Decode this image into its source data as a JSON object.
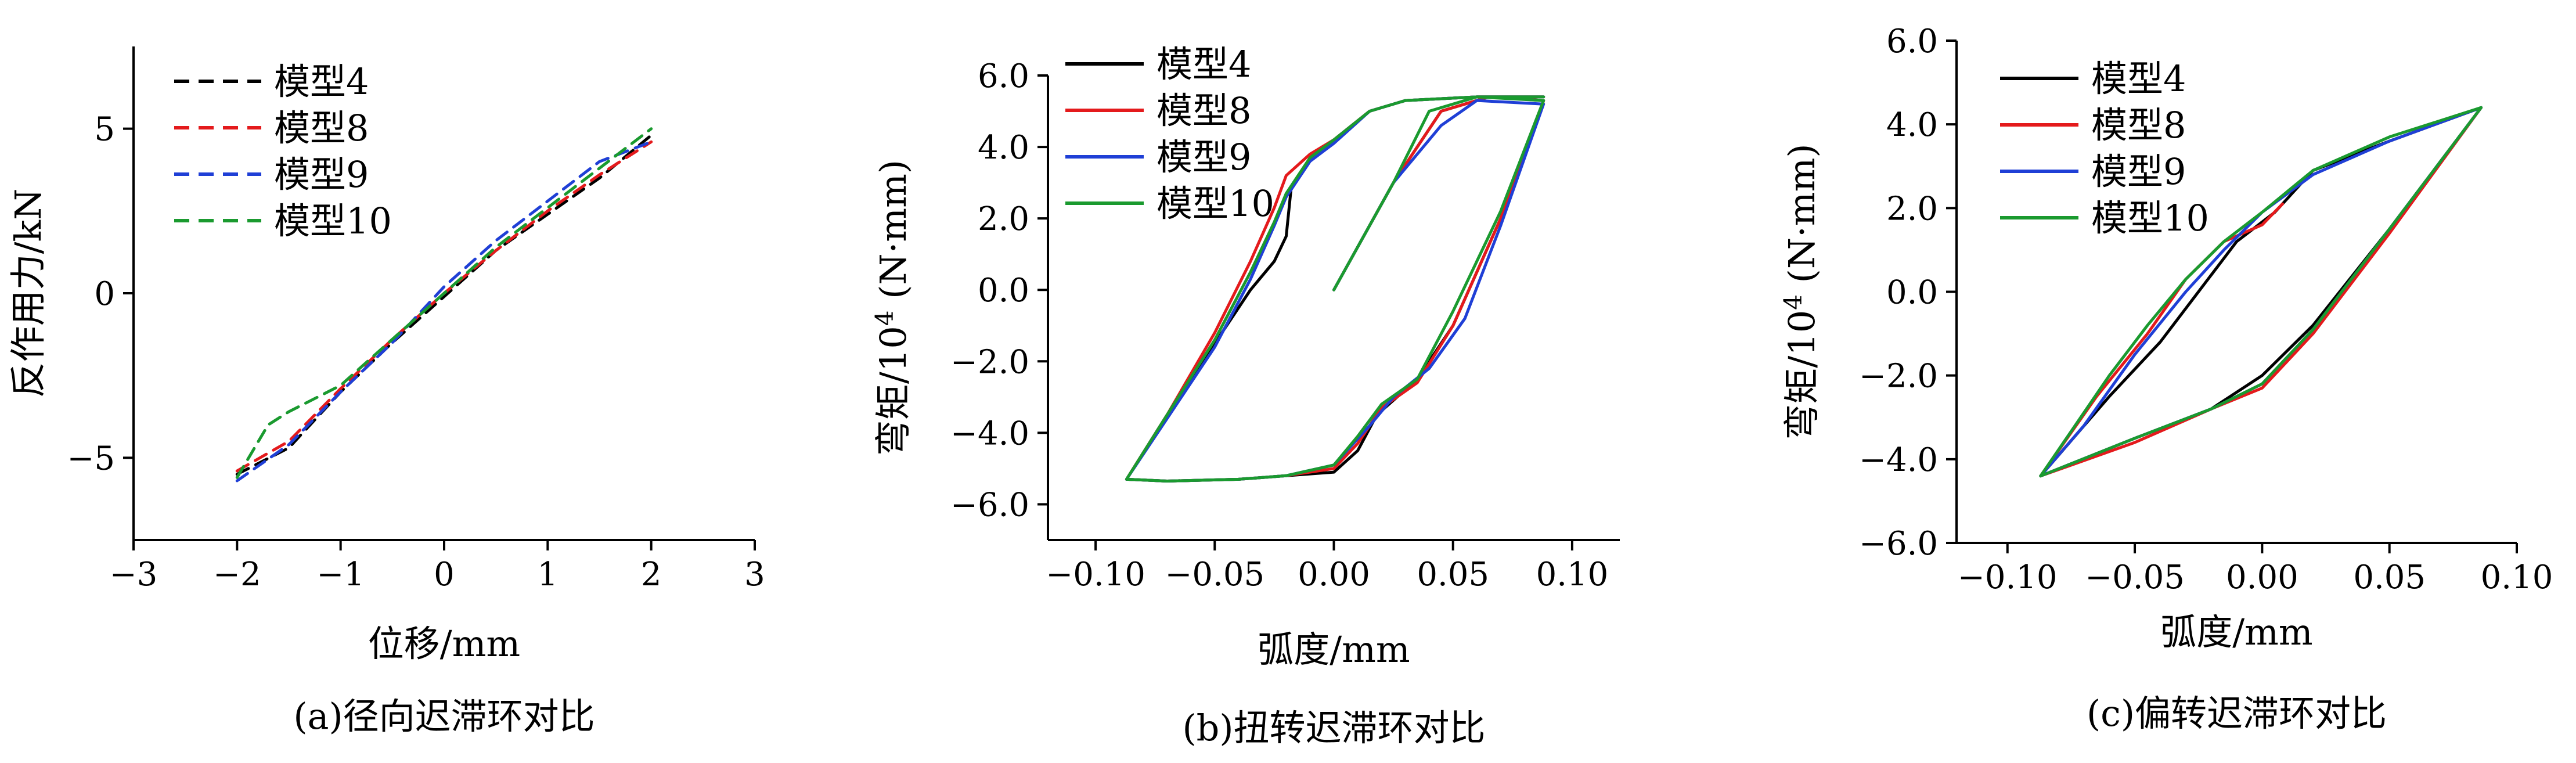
{
  "chart_data": [
    {
      "type": "line",
      "caption": "(a)径向迟滞环对比",
      "xlabel": "位移/mm",
      "ylabel": "反作用力/kN",
      "xlim": [
        -3,
        3
      ],
      "ylim": [
        -7.5,
        7.5
      ],
      "xticks": [
        "−3",
        "−2",
        "−1",
        "0",
        "1",
        "2",
        "3"
      ],
      "xtick_values": [
        -3,
        -2,
        -1,
        0,
        1,
        2,
        3
      ],
      "yticks": [
        "5",
        "0",
        "−5"
      ],
      "ytick_values": [
        5,
        0,
        -5
      ],
      "legend_position": "top-left",
      "line_style": "dashed",
      "series": [
        {
          "name": "模型4",
          "color": "#000000",
          "points": [
            [
              -2,
              -5.5
            ],
            [
              -1.5,
              -4.7
            ],
            [
              -1,
              -3.0
            ],
            [
              -0.5,
              -1.5
            ],
            [
              0,
              -0.1
            ],
            [
              0.5,
              1.3
            ],
            [
              1,
              2.4
            ],
            [
              1.5,
              3.5
            ],
            [
              2,
              4.8
            ]
          ]
        },
        {
          "name": "模型8",
          "color": "#e41a1c",
          "points": [
            [
              -2,
              -5.4
            ],
            [
              -1.5,
              -4.5
            ],
            [
              -1,
              -2.9
            ],
            [
              -0.5,
              -1.4
            ],
            [
              0,
              0
            ],
            [
              0.5,
              1.3
            ],
            [
              1,
              2.5
            ],
            [
              1.5,
              3.6
            ],
            [
              2,
              4.6
            ]
          ]
        },
        {
          "name": "模型9",
          "color": "#1f3fd6",
          "points": [
            [
              -2,
              -5.7
            ],
            [
              -1.5,
              -4.6
            ],
            [
              -1,
              -3.0
            ],
            [
              -0.5,
              -1.5
            ],
            [
              0,
              0.2
            ],
            [
              0.5,
              1.6
            ],
            [
              1,
              2.8
            ],
            [
              1.5,
              4.0
            ],
            [
              2,
              4.6
            ]
          ]
        },
        {
          "name": "模型10",
          "color": "#1a9a2f",
          "points": [
            [
              -2,
              -5.6
            ],
            [
              -1.7,
              -4.0
            ],
            [
              -1.5,
              -3.6
            ],
            [
              -1,
              -2.8
            ],
            [
              -0.5,
              -1.4
            ],
            [
              0,
              0
            ],
            [
              0.5,
              1.4
            ],
            [
              1,
              2.6
            ],
            [
              1.5,
              3.8
            ],
            [
              2,
              5.0
            ]
          ]
        }
      ]
    },
    {
      "type": "line",
      "caption": "(b)扭转迟滞环对比",
      "xlabel": "弧度/mm",
      "ylabel_prefix": "弯矩/10",
      "ylabel_sup": "4",
      "ylabel_suffix": " (N·mm)",
      "xlim": [
        -0.12,
        0.12
      ],
      "ylim": [
        -7.0,
        6.0
      ],
      "xticks": [
        "−0.10",
        "−0.05",
        "0.00",
        "0.05",
        "0.10"
      ],
      "xtick_values": [
        -0.1,
        -0.05,
        0,
        0.05,
        0.1
      ],
      "yticks": [
        "6.0",
        "4.0",
        "2.0",
        "0.0",
        "−2.0",
        "−4.0",
        "−6.0"
      ],
      "ytick_values": [
        6,
        4,
        2,
        0,
        -2,
        -4,
        -6
      ],
      "legend_position": "top-left",
      "line_style": "solid",
      "series": [
        {
          "name": "模型4",
          "color": "#000000",
          "points": [
            [
              0,
              0
            ],
            [
              0.025,
              3.0
            ],
            [
              0.045,
              5.0
            ],
            [
              0.065,
              5.4
            ],
            [
              0.088,
              5.3
            ],
            [
              0.07,
              2.0
            ],
            [
              0.05,
              -1.0
            ],
            [
              0.035,
              -2.5
            ],
            [
              0.018,
              -3.5
            ],
            [
              0.01,
              -4.5
            ],
            [
              0,
              -5.1
            ],
            [
              -0.02,
              -5.2
            ],
            [
              -0.04,
              -5.3
            ],
            [
              -0.07,
              -5.35
            ],
            [
              -0.087,
              -5.3
            ],
            [
              -0.07,
              -3.5
            ],
            [
              -0.05,
              -1.5
            ],
            [
              -0.035,
              0
            ],
            [
              -0.025,
              0.8
            ],
            [
              -0.02,
              1.5
            ],
            [
              -0.018,
              2.8
            ],
            [
              -0.01,
              3.7
            ],
            [
              0,
              4.2
            ],
            [
              0.015,
              5.0
            ],
            [
              0.03,
              5.3
            ],
            [
              0.06,
              5.4
            ],
            [
              0.088,
              5.4
            ]
          ]
        },
        {
          "name": "模型8",
          "color": "#e41a1c",
          "points": [
            [
              0,
              0
            ],
            [
              0.025,
              3.0
            ],
            [
              0.045,
              5.0
            ],
            [
              0.065,
              5.4
            ],
            [
              0.088,
              5.3
            ],
            [
              0.07,
              2.0
            ],
            [
              0.05,
              -1.0
            ],
            [
              0.035,
              -2.6
            ],
            [
              0.02,
              -3.3
            ],
            [
              0.01,
              -4.3
            ],
            [
              0,
              -5.0
            ],
            [
              -0.02,
              -5.2
            ],
            [
              -0.04,
              -5.3
            ],
            [
              -0.07,
              -5.35
            ],
            [
              -0.087,
              -5.3
            ],
            [
              -0.07,
              -3.5
            ],
            [
              -0.05,
              -1.2
            ],
            [
              -0.035,
              0.8
            ],
            [
              -0.025,
              2.3
            ],
            [
              -0.02,
              3.2
            ],
            [
              -0.01,
              3.8
            ],
            [
              0,
              4.2
            ],
            [
              0.015,
              5.0
            ],
            [
              0.03,
              5.3
            ],
            [
              0.06,
              5.4
            ],
            [
              0.088,
              5.4
            ]
          ]
        },
        {
          "name": "模型9",
          "color": "#1f3fd6",
          "points": [
            [
              0,
              0
            ],
            [
              0.025,
              3.0
            ],
            [
              0.045,
              4.6
            ],
            [
              0.06,
              5.3
            ],
            [
              0.088,
              5.2
            ],
            [
              0.07,
              1.8
            ],
            [
              0.055,
              -0.8
            ],
            [
              0.04,
              -2.2
            ],
            [
              0.025,
              -3.0
            ],
            [
              0.015,
              -3.8
            ],
            [
              0,
              -4.9
            ],
            [
              -0.02,
              -5.2
            ],
            [
              -0.04,
              -5.3
            ],
            [
              -0.07,
              -5.35
            ],
            [
              -0.087,
              -5.3
            ],
            [
              -0.07,
              -3.6
            ],
            [
              -0.05,
              -1.6
            ],
            [
              -0.035,
              0.3
            ],
            [
              -0.025,
              1.8
            ],
            [
              -0.02,
              2.6
            ],
            [
              -0.01,
              3.6
            ],
            [
              0,
              4.1
            ],
            [
              0.015,
              5.0
            ],
            [
              0.03,
              5.3
            ],
            [
              0.06,
              5.4
            ],
            [
              0.088,
              5.4
            ]
          ]
        },
        {
          "name": "模型10",
          "color": "#1a9a2f",
          "points": [
            [
              0,
              0
            ],
            [
              0.025,
              3.0
            ],
            [
              0.04,
              5.0
            ],
            [
              0.06,
              5.4
            ],
            [
              0.088,
              5.3
            ],
            [
              0.07,
              2.2
            ],
            [
              0.05,
              -0.6
            ],
            [
              0.035,
              -2.5
            ],
            [
              0.02,
              -3.2
            ],
            [
              0.01,
              -4.1
            ],
            [
              0,
              -4.9
            ],
            [
              -0.02,
              -5.2
            ],
            [
              -0.04,
              -5.3
            ],
            [
              -0.07,
              -5.35
            ],
            [
              -0.087,
              -5.3
            ],
            [
              -0.07,
              -3.5
            ],
            [
              -0.05,
              -1.4
            ],
            [
              -0.035,
              0.5
            ],
            [
              -0.025,
              1.9
            ],
            [
              -0.02,
              2.7
            ],
            [
              -0.01,
              3.7
            ],
            [
              0,
              4.2
            ],
            [
              0.015,
              5.0
            ],
            [
              0.03,
              5.3
            ],
            [
              0.06,
              5.4
            ],
            [
              0.088,
              5.4
            ]
          ]
        }
      ]
    },
    {
      "type": "line",
      "caption": "(c)偏转迟滞环对比",
      "xlabel": "弧度/mm",
      "ylabel_prefix": "弯矩/10",
      "ylabel_sup": "4",
      "ylabel_suffix": " (N·mm)",
      "xlim": [
        -0.12,
        0.1
      ],
      "ylim": [
        -6.0,
        6.0
      ],
      "xticks": [
        "−0.10",
        "−0.05",
        "0.00",
        "0.05",
        "0.10"
      ],
      "xtick_values": [
        -0.1,
        -0.05,
        0,
        0.05,
        0.1
      ],
      "yticks": [
        "6.0",
        "4.0",
        "2.0",
        "0.0",
        "−2.0",
        "−4.0",
        "−6.0"
      ],
      "ytick_values": [
        6,
        4,
        2,
        0,
        -2,
        -4,
        -6
      ],
      "legend_position": "top-left",
      "line_style": "solid",
      "series": [
        {
          "name": "模型4",
          "color": "#000000",
          "points": [
            [
              0.086,
              4.4
            ],
            [
              0.05,
              1.5
            ],
            [
              0.02,
              -0.8
            ],
            [
              0,
              -2.0
            ],
            [
              -0.02,
              -2.8
            ],
            [
              -0.05,
              -3.5
            ],
            [
              -0.087,
              -4.4
            ],
            [
              -0.06,
              -2.5
            ],
            [
              -0.04,
              -1.2
            ],
            [
              -0.025,
              0
            ],
            [
              -0.01,
              1.2
            ],
            [
              0.005,
              1.9
            ],
            [
              0.02,
              2.9
            ],
            [
              0.05,
              3.6
            ],
            [
              0.086,
              4.4
            ]
          ]
        },
        {
          "name": "模型8",
          "color": "#e41a1c",
          "points": [
            [
              0.086,
              4.4
            ],
            [
              0.05,
              1.4
            ],
            [
              0.02,
              -1.0
            ],
            [
              0,
              -2.3
            ],
            [
              -0.02,
              -2.8
            ],
            [
              -0.05,
              -3.6
            ],
            [
              -0.087,
              -4.4
            ],
            [
              -0.065,
              -2.5
            ],
            [
              -0.045,
              -1.0
            ],
            [
              -0.03,
              0.3
            ],
            [
              -0.015,
              1.2
            ],
            [
              0,
              1.6
            ],
            [
              0.008,
              2.1
            ]
          ]
        },
        {
          "name": "模型9",
          "color": "#1f3fd6",
          "points": [
            [
              0.086,
              4.4
            ],
            [
              0.05,
              1.5
            ],
            [
              0.02,
              -0.9
            ],
            [
              0,
              -2.2
            ],
            [
              -0.02,
              -2.8
            ],
            [
              -0.05,
              -3.5
            ],
            [
              -0.087,
              -4.4
            ],
            [
              -0.07,
              -3.2
            ],
            [
              -0.05,
              -1.5
            ],
            [
              -0.03,
              0
            ],
            [
              -0.015,
              1.0
            ],
            [
              0,
              1.9
            ],
            [
              0.02,
              2.8
            ],
            [
              0.05,
              3.6
            ],
            [
              0.086,
              4.4
            ]
          ]
        },
        {
          "name": "模型10",
          "color": "#1a9a2f",
          "points": [
            [
              0.086,
              4.4
            ],
            [
              0.05,
              1.5
            ],
            [
              0.02,
              -0.9
            ],
            [
              0,
              -2.2
            ],
            [
              -0.02,
              -2.8
            ],
            [
              -0.05,
              -3.5
            ],
            [
              -0.087,
              -4.4
            ],
            [
              -0.06,
              -2.0
            ],
            [
              -0.045,
              -0.8
            ],
            [
              -0.03,
              0.3
            ],
            [
              -0.015,
              1.2
            ],
            [
              0,
              1.9
            ],
            [
              0.02,
              2.9
            ],
            [
              0.05,
              3.7
            ],
            [
              0.086,
              4.4
            ]
          ]
        }
      ]
    }
  ]
}
